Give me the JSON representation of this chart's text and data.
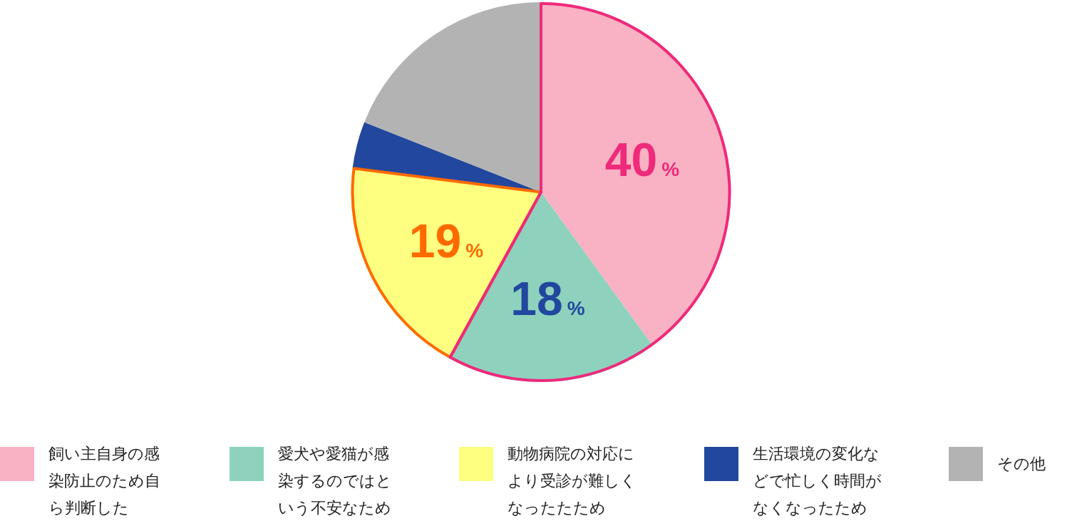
{
  "chart_data": {
    "type": "pie",
    "categories": [
      "飼い主自身の感染防止のため自ら判断した",
      "愛犬や愛猫が感染するのではという不安なため",
      "動物病院の対応により受診が難しくなったたため",
      "生活環境の変化などで忙しく時間がなくなったため",
      "その他"
    ],
    "values": [
      40,
      18,
      19,
      4,
      19
    ],
    "colors": [
      "#f9b2c3",
      "#8ed2bd",
      "#fefe80",
      "#22479e",
      "#b3b3b3"
    ],
    "value_labels": [
      "40%",
      "18%",
      "19%",
      null,
      null
    ],
    "legend": "bottom"
  }
}
